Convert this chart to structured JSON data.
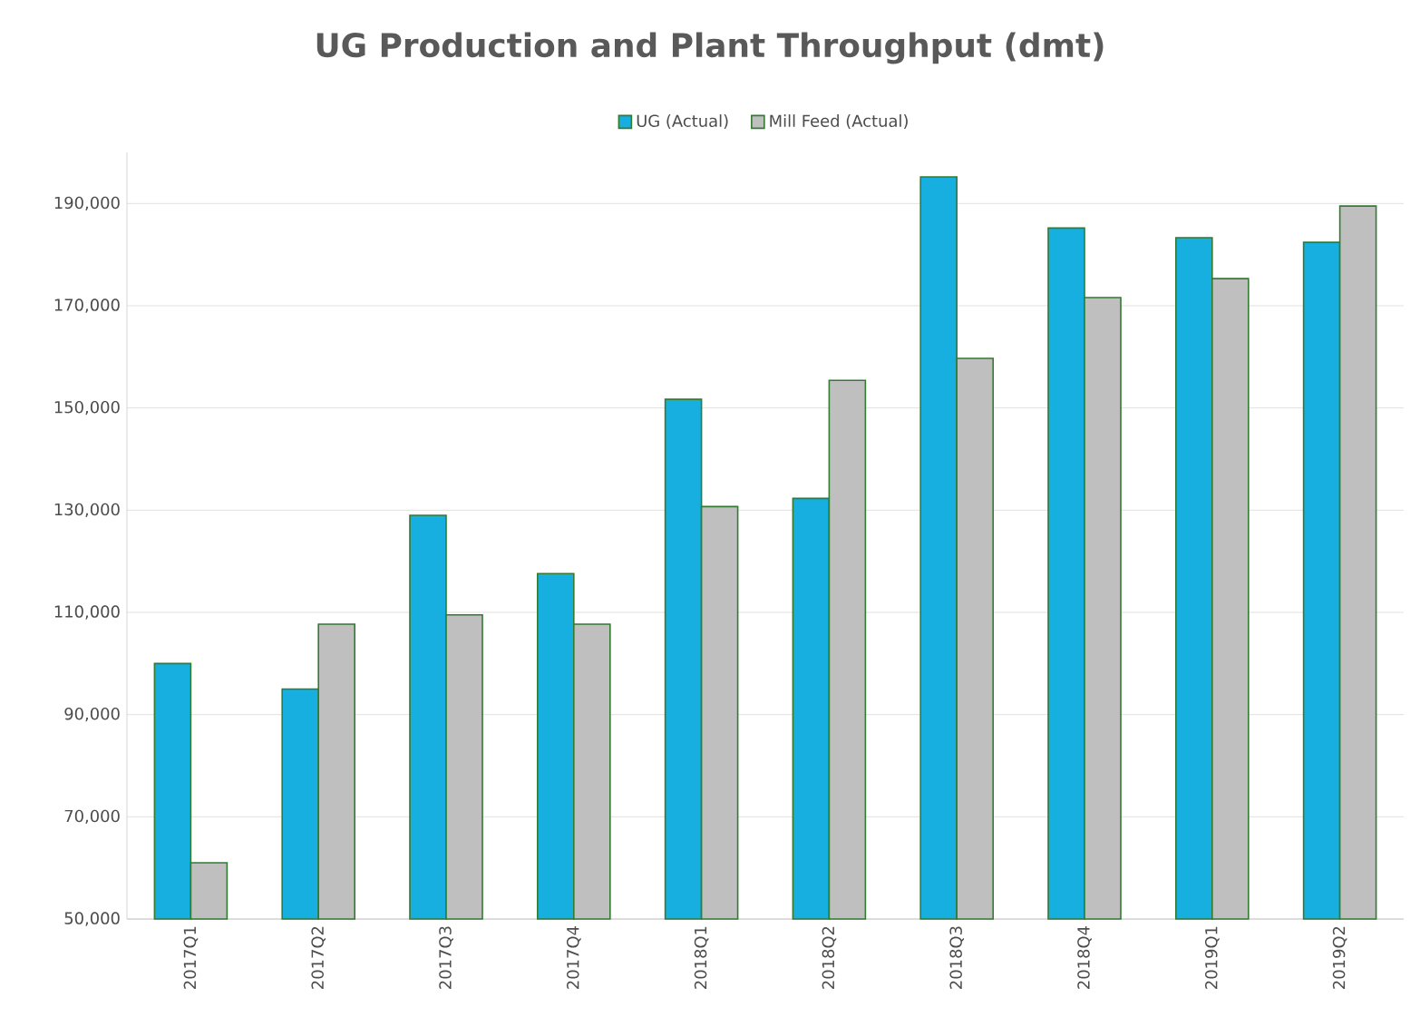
{
  "chart_data": {
    "type": "bar",
    "title": "UG Production and Plant Throughput (dmt)",
    "categories": [
      "2017Q1",
      "2017Q2",
      "2017Q3",
      "2017Q4",
      "2018Q1",
      "2018Q2",
      "2018Q3",
      "2018Q4",
      "2019Q1",
      "2019Q2"
    ],
    "series": [
      {
        "name": "UG (Actual)",
        "color": "#17aee0",
        "values": [
          100000,
          95000,
          129000,
          117600,
          151700,
          132300,
          195200,
          185200,
          183300,
          182400
        ]
      },
      {
        "name": "Mill Feed (Actual)",
        "color": "#bfbfbf",
        "values": [
          61000,
          107700,
          109500,
          107700,
          130700,
          155400,
          159700,
          171600,
          175300,
          189500
        ]
      }
    ],
    "yticks": [
      {
        "value": 50000,
        "label": "50,000"
      },
      {
        "value": 70000,
        "label": "70,000"
      },
      {
        "value": 90000,
        "label": "90,000"
      },
      {
        "value": 110000,
        "label": "110,000"
      },
      {
        "value": 130000,
        "label": "130,000"
      },
      {
        "value": 150000,
        "label": "150,000"
      },
      {
        "value": 170000,
        "label": "170,000"
      },
      {
        "value": 190000,
        "label": "190,000"
      }
    ],
    "ylim": [
      50000,
      200000
    ],
    "grid": "y",
    "legend": "top"
  }
}
